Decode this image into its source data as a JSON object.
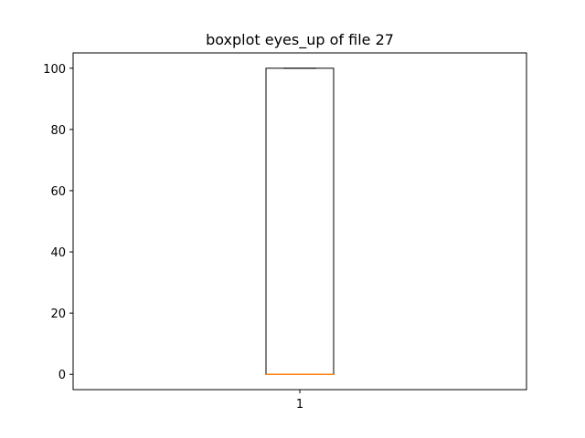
{
  "chart_data": {
    "type": "boxplot",
    "title": "boxplot eyes_up of file 27",
    "xlabel": "",
    "ylabel": "",
    "categories": [
      "1"
    ],
    "boxes": [
      {
        "category": "1",
        "min": 0,
        "q1": 0,
        "median": 0,
        "q3": 100,
        "max": 100
      }
    ],
    "ylim": [
      -5,
      105
    ],
    "yticks": [
      0,
      20,
      40,
      60,
      80,
      100
    ],
    "grid": false,
    "colors": {
      "box": "#000000",
      "median": "#ff7f0e",
      "axis": "#000000"
    }
  }
}
